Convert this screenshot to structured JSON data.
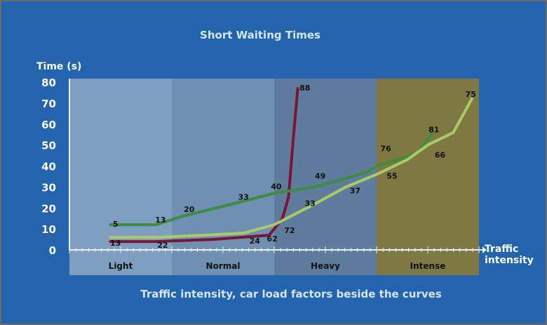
{
  "chart_data": {
    "type": "line",
    "title": "Short Waiting Times",
    "ylabel": "Time (s)",
    "xlabel": "Traffic intensity",
    "caption": "Traffic intensity, car load factors beside the curves",
    "ylim": [
      0,
      80
    ],
    "yticks": [
      "0",
      "10",
      "20",
      "30",
      "40",
      "50",
      "60",
      "70",
      "80"
    ],
    "xlim": [
      0,
      4
    ],
    "bands": [
      {
        "name": "Light",
        "color": "#7e9fc0"
      },
      {
        "name": "Normal",
        "color": "#6f8fb3"
      },
      {
        "name": "Heavy",
        "color": "#5f7b9d"
      },
      {
        "name": "Intense",
        "color": "#7f7843"
      }
    ],
    "series": [
      {
        "color": "#7a1535",
        "x": [
          0.4,
          0.85,
          1.4,
          1.95,
          2.0,
          2.08,
          2.14,
          2.19,
          2.23
        ],
        "y": [
          4,
          4,
          5,
          7,
          10,
          15,
          25,
          55,
          77
        ]
      },
      {
        "color": "#3d8c3f",
        "x": [
          0.4,
          0.85,
          1.1,
          1.6,
          2.0,
          2.4,
          2.9,
          3.0,
          3.4,
          3.55
        ],
        "y": [
          12,
          12,
          16,
          22,
          27,
          30,
          37,
          40,
          46,
          56
        ]
      },
      {
        "color": "#a8cb67",
        "x": [
          0.4,
          0.85,
          1.3,
          1.7,
          2.0,
          2.2,
          2.4,
          2.7,
          3.0,
          3.3,
          3.5,
          3.75,
          3.93
        ],
        "y": [
          6,
          6,
          7,
          8,
          12,
          17,
          22,
          30,
          36,
          43,
          50,
          56,
          72
        ]
      }
    ],
    "data_labels": [
      {
        "text": "5",
        "x": 0.45,
        "y": 11
      },
      {
        "text": "13",
        "x": 0.89,
        "y": 13
      },
      {
        "text": "20",
        "x": 1.17,
        "y": 18
      },
      {
        "text": "33",
        "x": 1.7,
        "y": 24
      },
      {
        "text": "40",
        "x": 2.02,
        "y": 29
      },
      {
        "text": "49",
        "x": 2.45,
        "y": 34
      },
      {
        "text": "76",
        "x": 3.09,
        "y": 47
      },
      {
        "text": "81",
        "x": 3.56,
        "y": 56
      },
      {
        "text": "13",
        "x": 0.45,
        "y": 2
      },
      {
        "text": "22",
        "x": 0.91,
        "y": 1
      },
      {
        "text": "24",
        "x": 1.81,
        "y": 3
      },
      {
        "text": "62",
        "x": 1.98,
        "y": 4
      },
      {
        "text": "72",
        "x": 2.15,
        "y": 8
      },
      {
        "text": "33",
        "x": 2.35,
        "y": 21
      },
      {
        "text": "37",
        "x": 2.79,
        "y": 27
      },
      {
        "text": "55",
        "x": 3.15,
        "y": 34
      },
      {
        "text": "66",
        "x": 3.62,
        "y": 44
      },
      {
        "text": "75",
        "x": 3.92,
        "y": 73
      },
      {
        "text": "88",
        "x": 2.3,
        "y": 76
      }
    ]
  }
}
